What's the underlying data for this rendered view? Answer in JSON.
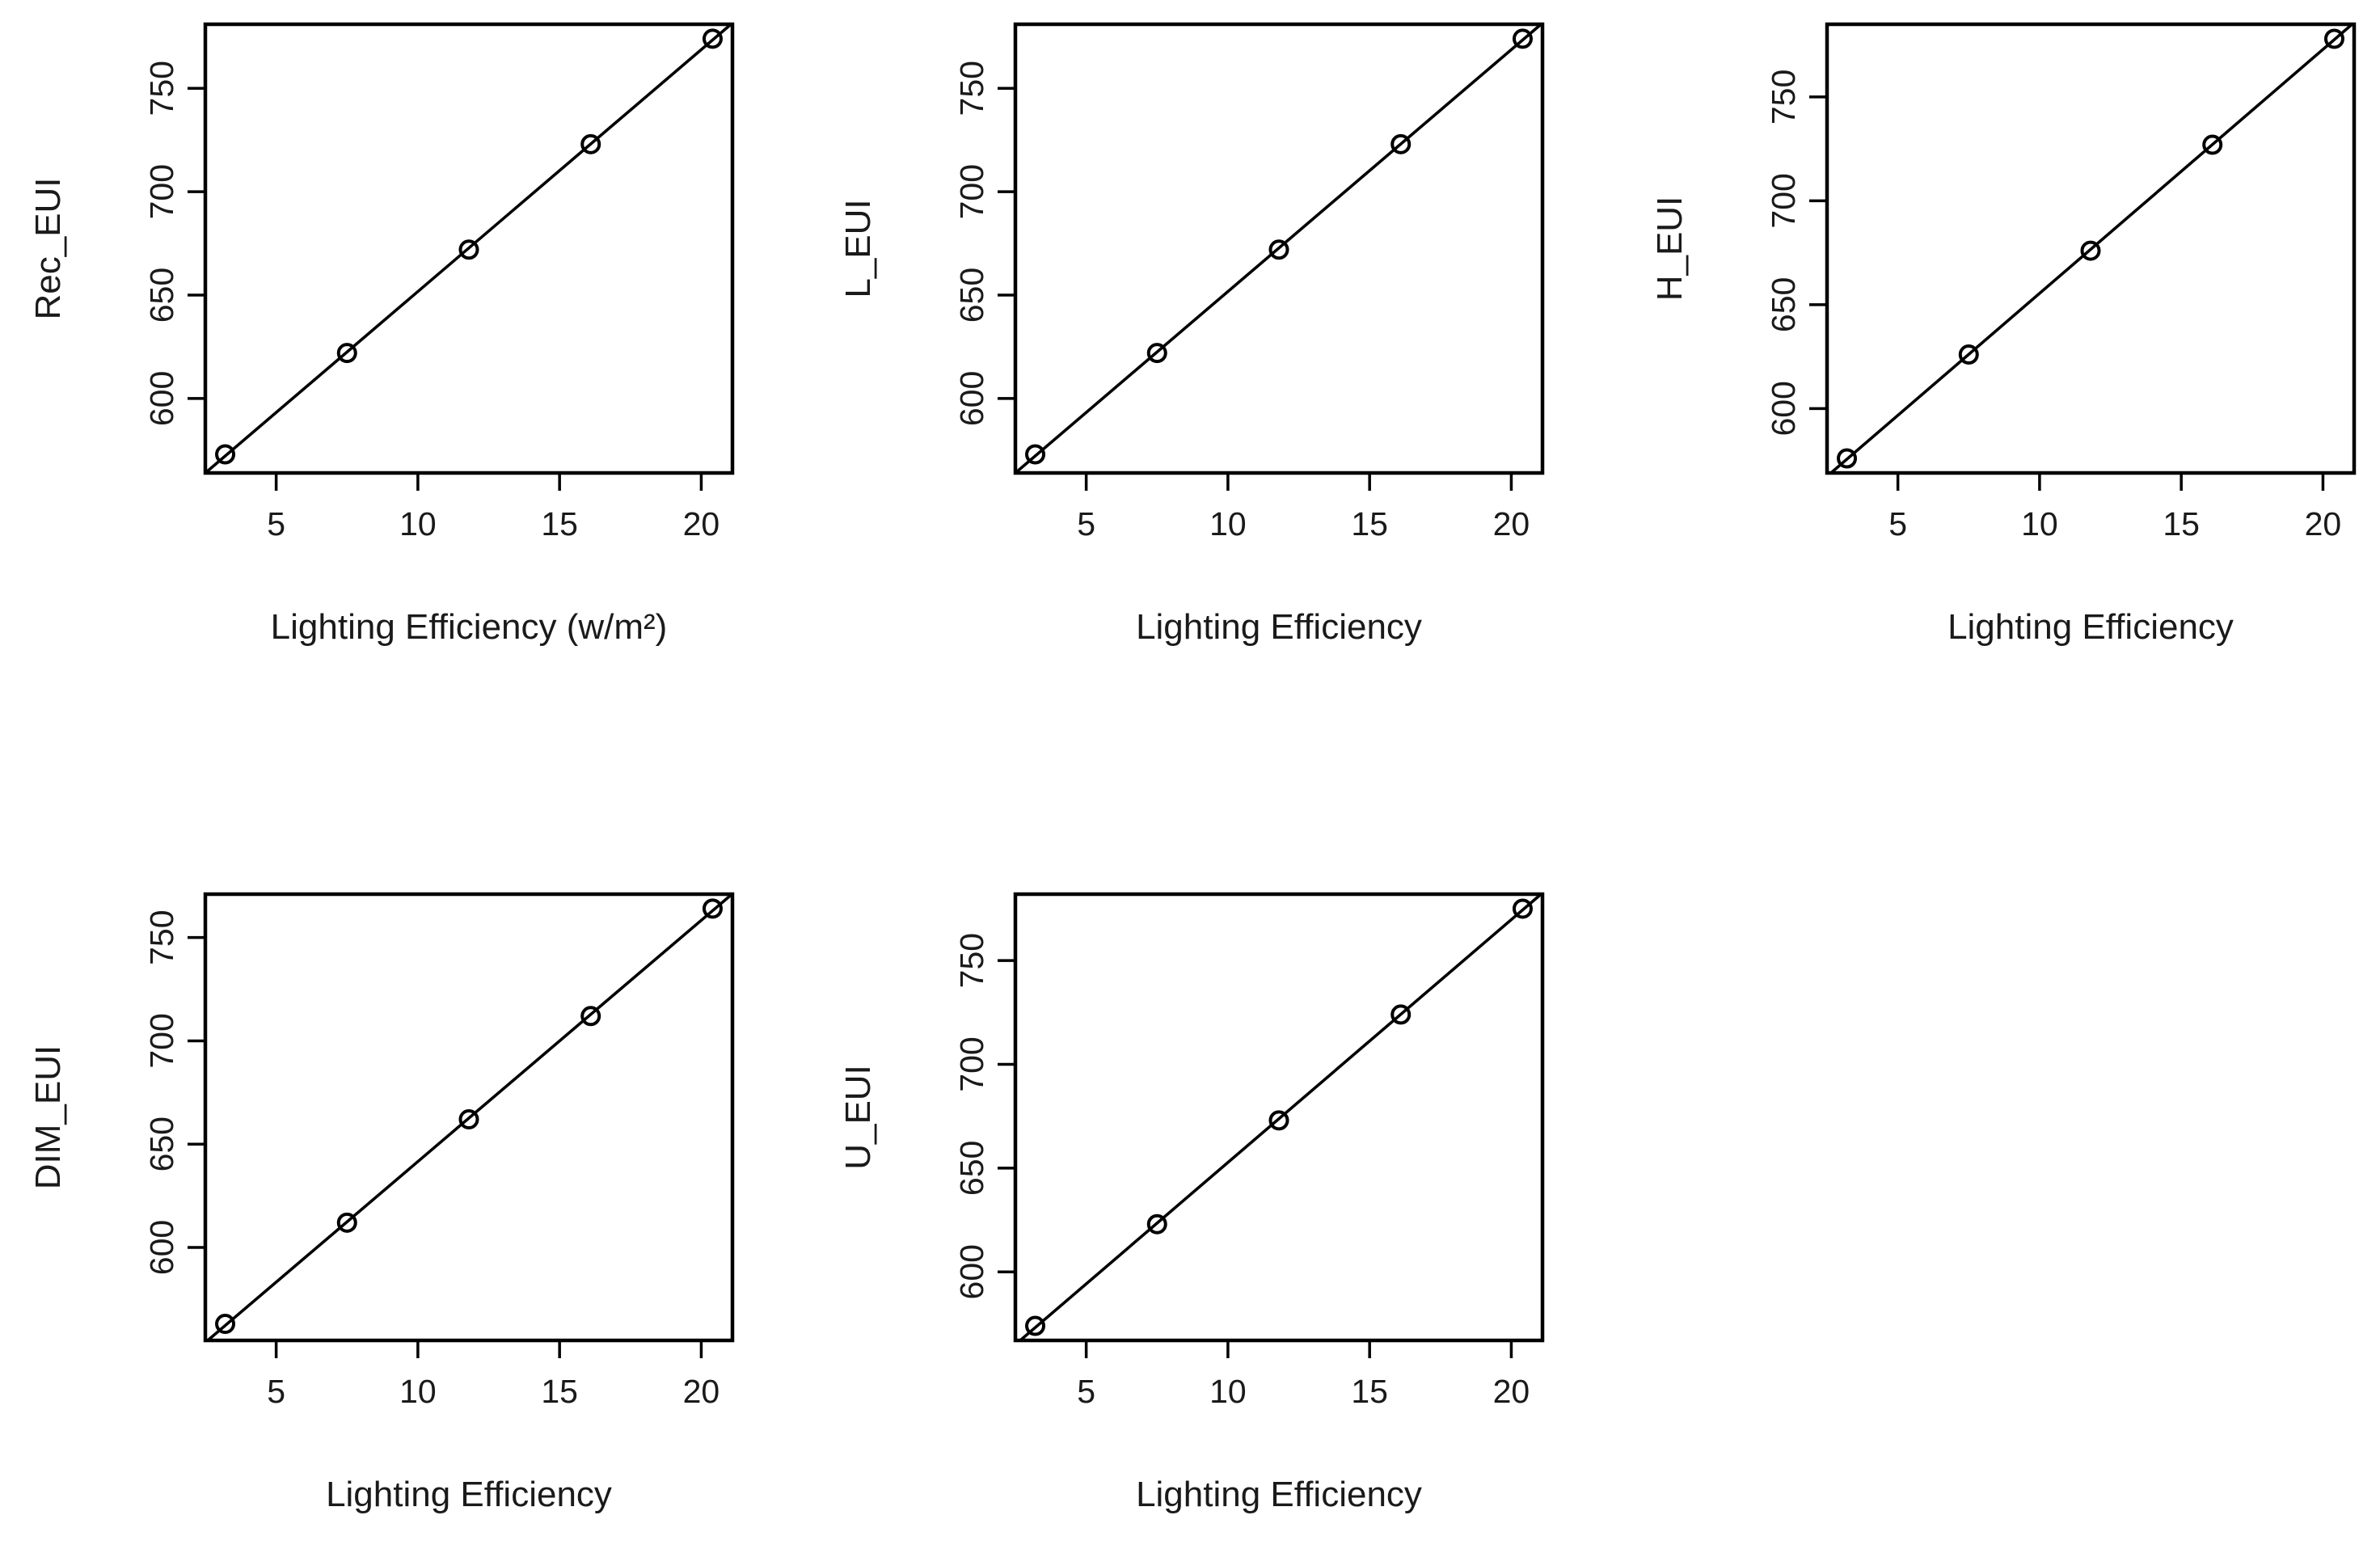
{
  "chart_data": [
    {
      "type": "scatter",
      "xlabel": "Lighting Efficiency (w/m²)",
      "ylabel": "Rec_EUI",
      "x": [
        3.2,
        7.5,
        11.8,
        16.1,
        20.4
      ],
      "y": [
        573,
        622,
        672,
        723,
        774
      ],
      "fit_line": true,
      "xlim": [
        2.5,
        21.1
      ],
      "ylim": [
        564,
        781
      ],
      "xticks": [
        5,
        10,
        15,
        20
      ],
      "yticks": [
        600,
        650,
        700,
        750
      ],
      "grid": false
    },
    {
      "type": "scatter",
      "xlabel": "Lighting Efficiency",
      "ylabel": "L_EUI",
      "x": [
        3.2,
        7.5,
        11.8,
        16.1,
        20.4
      ],
      "y": [
        573,
        622,
        672,
        723,
        774
      ],
      "fit_line": true,
      "xlim": [
        2.5,
        21.1
      ],
      "ylim": [
        564,
        781
      ],
      "xticks": [
        5,
        10,
        15,
        20
      ],
      "yticks": [
        600,
        650,
        700,
        750
      ],
      "grid": false
    },
    {
      "type": "scatter",
      "xlabel": "Lighting Efficiency",
      "ylabel": "H_EUI",
      "x": [
        3.2,
        7.5,
        11.8,
        16.1,
        20.4
      ],
      "y": [
        576,
        626,
        676,
        727,
        778
      ],
      "fit_line": true,
      "xlim": [
        2.5,
        21.1
      ],
      "ylim": [
        569,
        785
      ],
      "xticks": [
        5,
        10,
        15,
        20
      ],
      "yticks": [
        600,
        650,
        700,
        750
      ],
      "grid": false
    },
    {
      "type": "scatter",
      "xlabel": "Lighting Efficiency",
      "ylabel": "DIM_EUI",
      "x": [
        3.2,
        7.5,
        11.8,
        16.1,
        20.4
      ],
      "y": [
        563,
        612,
        662,
        712,
        764
      ],
      "fit_line": true,
      "xlim": [
        2.5,
        21.1
      ],
      "ylim": [
        555,
        771
      ],
      "xticks": [
        5,
        10,
        15,
        20
      ],
      "yticks": [
        600,
        650,
        700,
        750
      ],
      "grid": false
    },
    {
      "type": "scatter",
      "xlabel": "Lighting Efficiency",
      "ylabel": "U_EUI",
      "x": [
        3.2,
        7.5,
        11.8,
        16.1,
        20.4
      ],
      "y": [
        574,
        623,
        673,
        724,
        775
      ],
      "fit_line": true,
      "xlim": [
        2.5,
        21.1
      ],
      "ylim": [
        567,
        782
      ],
      "xticks": [
        5,
        10,
        15,
        20
      ],
      "yticks": [
        600,
        650,
        700,
        750
      ],
      "grid": false
    }
  ]
}
